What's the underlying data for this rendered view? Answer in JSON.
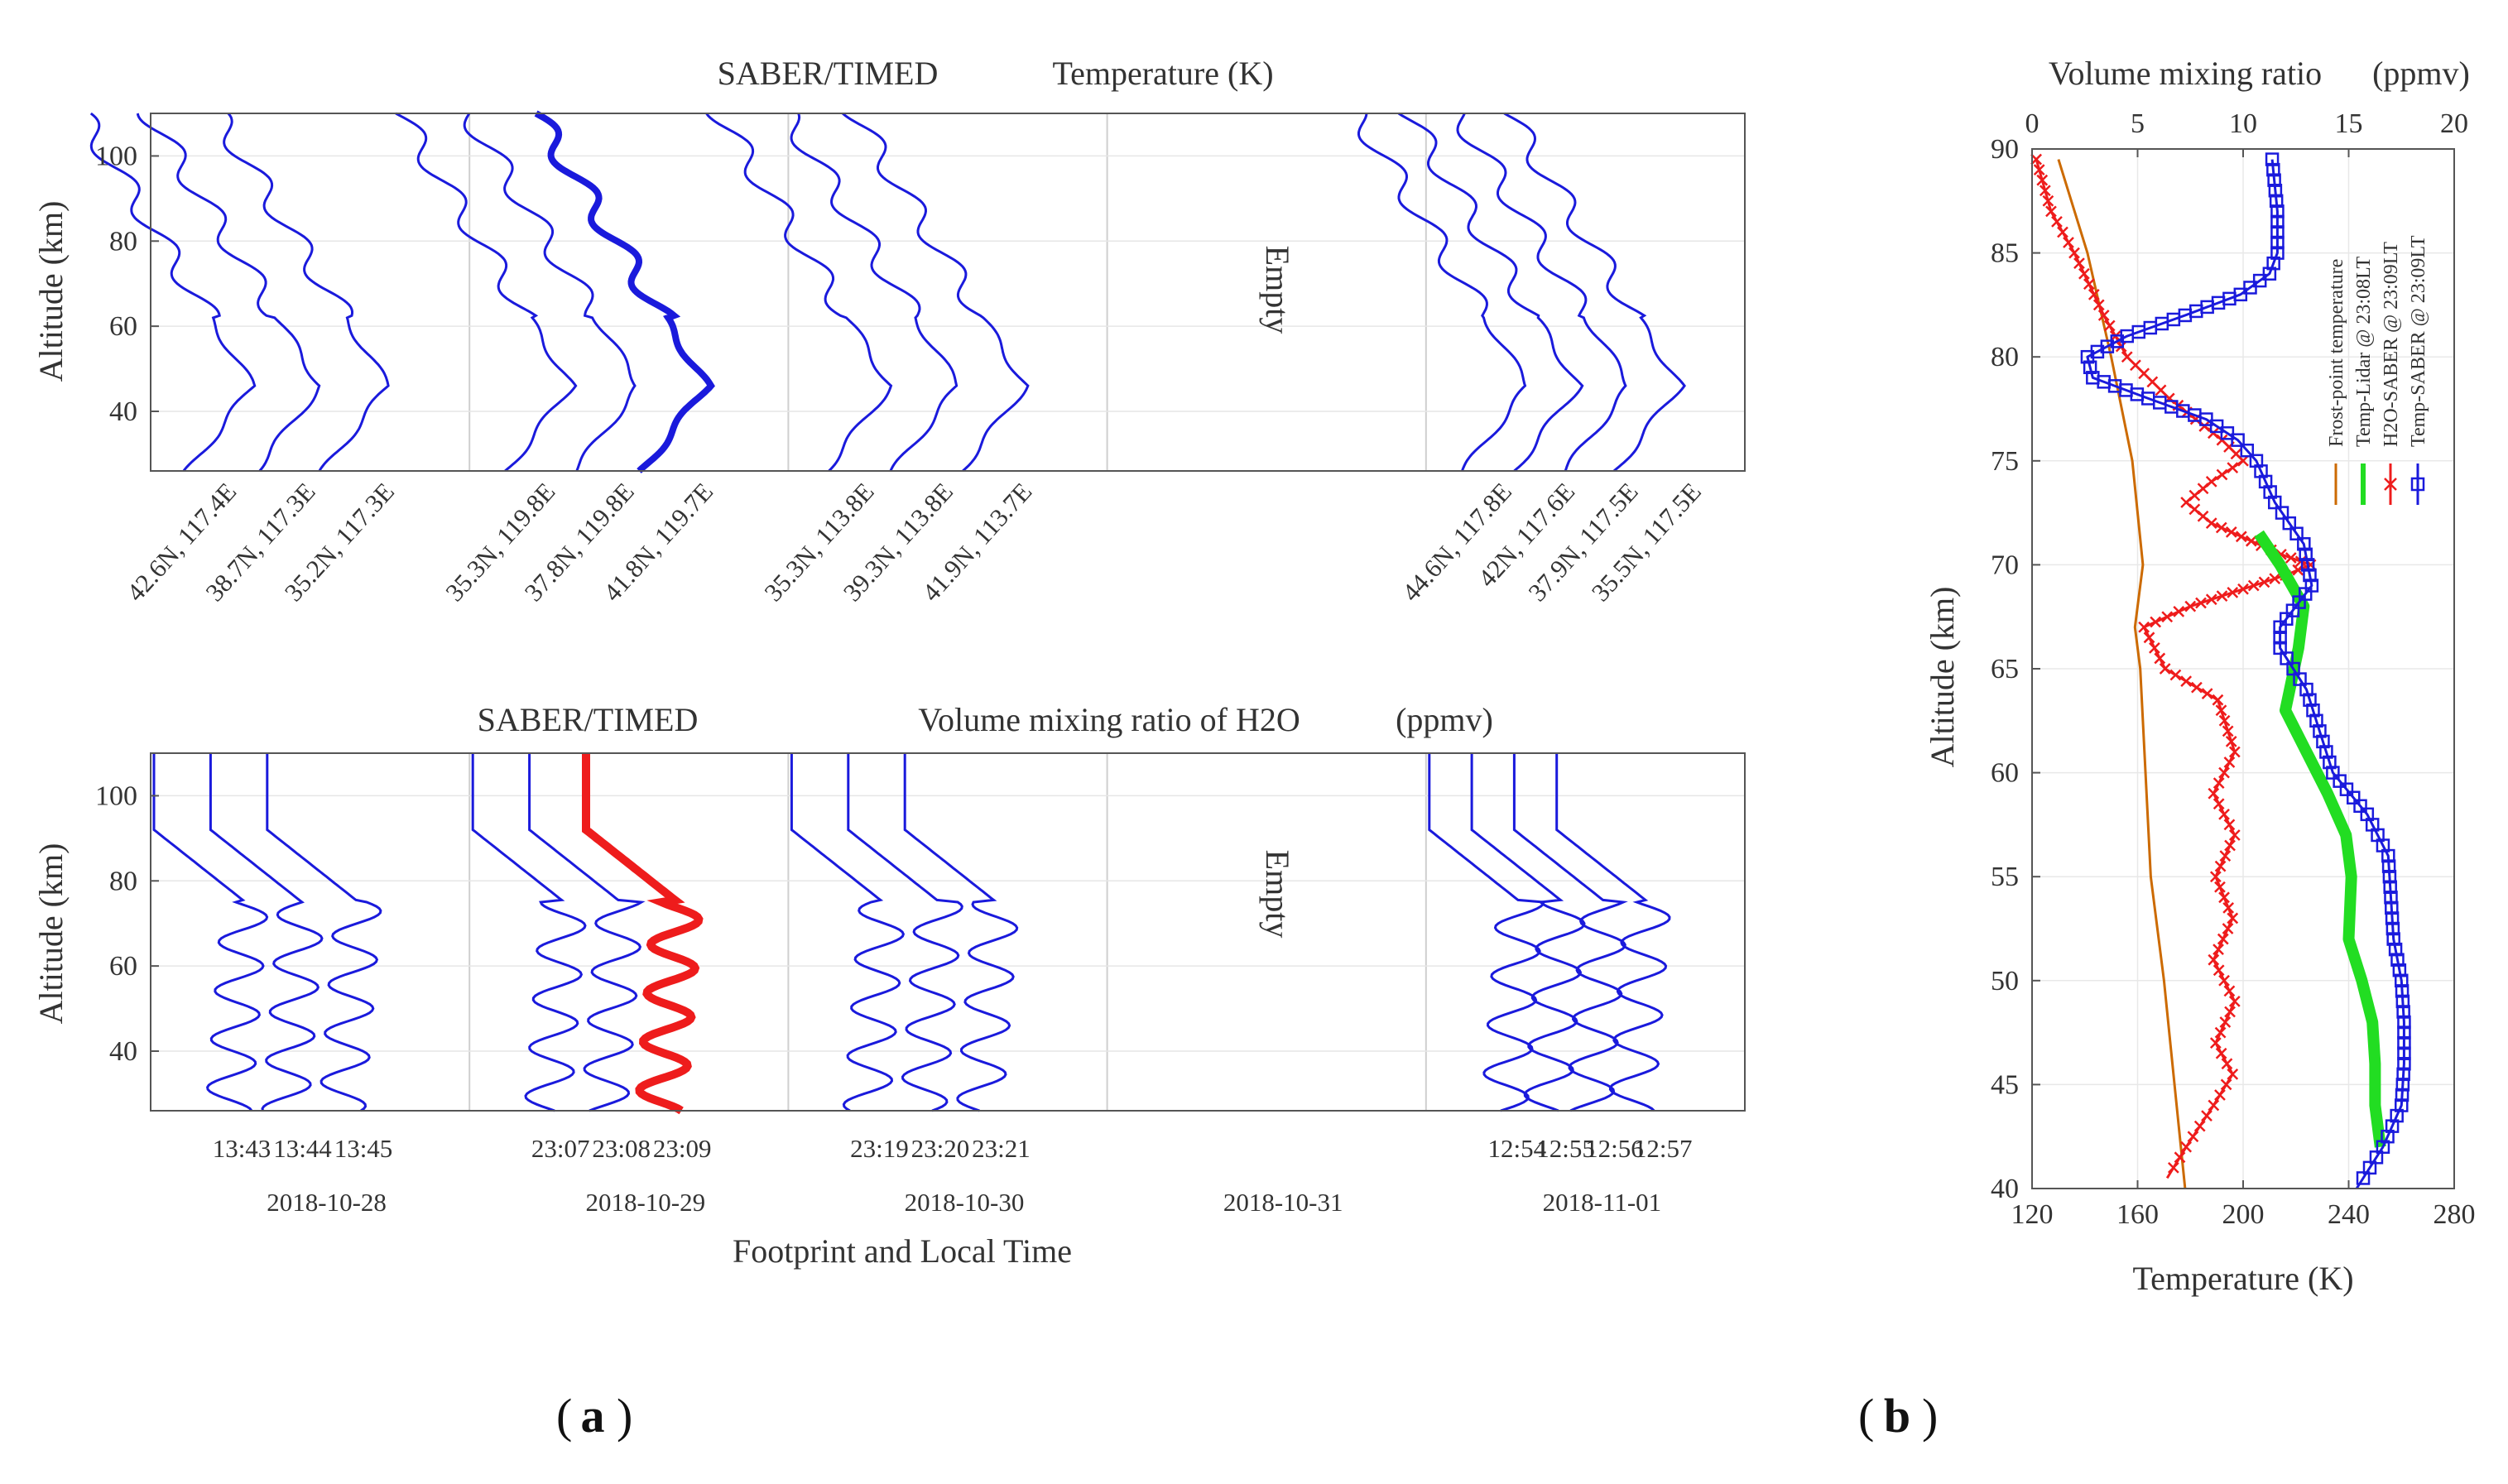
{
  "colors": {
    "blue": "#1a1adc",
    "red": "#ee1c1c",
    "green": "#22dd22",
    "orange": "#cc6a00",
    "grid": "#cfcfcf",
    "frame": "#555555"
  },
  "panel_labels": {
    "a": "(a)",
    "b": "(b)",
    "a_text": "a",
    "b_text": "b"
  },
  "chart_data": [
    {
      "id": "a-top",
      "type": "line",
      "title_left": "SABER/TIMED",
      "title_right": "Temperature (K)",
      "ylabel": "Altitude (km)",
      "ylim": [
        26,
        110
      ],
      "yticks": [
        "40",
        "60",
        "80",
        "100"
      ],
      "empty_label": "Empty",
      "empty_group": 3,
      "groups": [
        {
          "footprints": [
            "42.6N, 117.4E",
            "38.7N, 117.3E",
            "35.2N, 117.3E"
          ]
        },
        {
          "footprints": [
            "35.3N, 119.8E",
            "37.8N, 119.8E",
            "41.8N, 119.7E"
          ],
          "highlight": 2
        },
        {
          "footprints": [
            "35.3N, 113.8E",
            "39.3N, 113.8E",
            "41.9N, 113.7E"
          ]
        },
        {
          "footprints": []
        },
        {
          "footprints": [
            "44.6N, 117.8E",
            "42N, 117.6E",
            "37.9N, 117.5E",
            "35.5N, 117.5E"
          ]
        }
      ]
    },
    {
      "id": "a-bottom",
      "type": "line",
      "title_left": "SABER/TIMED",
      "title_right": "Volume mixing ratio of H2O",
      "title_unit": "(ppmv)",
      "ylabel": "Altitude (km)",
      "xlabel": "Footprint and Local Time",
      "ylim": [
        26,
        110
      ],
      "yticks": [
        "40",
        "60",
        "80",
        "100"
      ],
      "empty_label": "Empty",
      "empty_group": 3,
      "groups": [
        {
          "times": [
            "13:43",
            "13:44",
            "13:45"
          ],
          "date": "2018-10-28"
        },
        {
          "times": [
            "23:07",
            "23:08",
            "23:09"
          ],
          "date": "2018-10-29",
          "highlight": 2
        },
        {
          "times": [
            "23:19",
            "23:20",
            "23:21"
          ],
          "date": "2018-10-30"
        },
        {
          "times": [],
          "date": "2018-10-31"
        },
        {
          "times": [
            "12:54",
            "12:55",
            "12:56",
            "12:57"
          ],
          "date": "2018-11-01"
        }
      ]
    },
    {
      "id": "b",
      "type": "line",
      "top_axis_label": "Volume mixing ratio",
      "top_axis_unit": "(ppmv)",
      "top_xlim": [
        0,
        20
      ],
      "top_ticks": [
        "0",
        "5",
        "10",
        "15",
        "20"
      ],
      "xlabel": "Temperature (K)",
      "xlim": [
        120,
        280
      ],
      "xticks": [
        "120",
        "160",
        "200",
        "240",
        "280"
      ],
      "ylabel": "Altitude (km)",
      "ylim": [
        40,
        90
      ],
      "yticks": [
        "40",
        "45",
        "50",
        "55",
        "60",
        "65",
        "70",
        "75",
        "80",
        "85",
        "90"
      ],
      "legend": [
        "Frost-point temperature",
        "Temp-Lidar @ 23:08LT",
        "H2O-SABER @ 23:09LT",
        "Temp-SABER @ 23:09LT"
      ],
      "series": [
        {
          "name": "Frost-point temperature",
          "axis": "bottom",
          "points": [
            [
              130,
              89.5
            ],
            [
              141,
              85
            ],
            [
              150,
              80
            ],
            [
              158,
              75
            ],
            [
              162,
              70
            ],
            [
              159,
              67
            ],
            [
              161,
              65
            ],
            [
              165,
              55
            ],
            [
              170,
              50
            ],
            [
              174,
              45
            ],
            [
              178,
              40
            ]
          ]
        },
        {
          "name": "H2O-SABER @ 23:09LT",
          "axis": "top",
          "points": [
            [
              0.2,
              89.5
            ],
            [
              0.9,
              87
            ],
            [
              2.0,
              85
            ],
            [
              3.4,
              82
            ],
            [
              4.5,
              80
            ],
            [
              6.5,
              78
            ],
            [
              9.0,
              76
            ],
            [
              10.0,
              75
            ],
            [
              8.5,
              74
            ],
            [
              7.3,
              73
            ],
            [
              8.5,
              72
            ],
            [
              11.8,
              70.5
            ],
            [
              13.2,
              70
            ],
            [
              12.0,
              69.5
            ],
            [
              7.5,
              68
            ],
            [
              5.3,
              67
            ],
            [
              6.3,
              65
            ],
            [
              8.8,
              63.5
            ],
            [
              9.6,
              61
            ],
            [
              8.6,
              59
            ],
            [
              9.6,
              57
            ],
            [
              8.7,
              55
            ],
            [
              9.5,
              53
            ],
            [
              8.6,
              51
            ],
            [
              9.6,
              49
            ],
            [
              8.7,
              47
            ],
            [
              9.5,
              45.5
            ],
            [
              8.6,
              44
            ],
            [
              7.3,
              42
            ],
            [
              6.4,
              40.5
            ]
          ]
        },
        {
          "name": "Temp-Lidar @ 23:08LT",
          "axis": "bottom",
          "points": [
            [
              206,
              71.5
            ],
            [
              214,
              70
            ],
            [
              223,
              68
            ],
            [
              221,
              66
            ],
            [
              216,
              63
            ],
            [
              224,
              61
            ],
            [
              232,
              59
            ],
            [
              239,
              57
            ],
            [
              241,
              55
            ],
            [
              240,
              52
            ],
            [
              245,
              50
            ],
            [
              249,
              48
            ],
            [
              250,
              46
            ],
            [
              250,
              44
            ],
            [
              252,
              42
            ]
          ]
        },
        {
          "name": "Temp-SABER @ 23:09LT",
          "axis": "bottom",
          "points": [
            [
              211,
              89.5
            ],
            [
              213,
              87
            ],
            [
              213,
              85
            ],
            [
              210,
              84
            ],
            [
              199,
              83
            ],
            [
              178,
              82
            ],
            [
              156,
              81
            ],
            [
              141,
              80
            ],
            [
              143,
              79
            ],
            [
              164,
              78
            ],
            [
              186,
              77
            ],
            [
              198,
              76
            ],
            [
              205,
              75
            ],
            [
              212,
              73
            ],
            [
              223,
              71
            ],
            [
              226,
              69
            ],
            [
              214,
              67
            ],
            [
              214,
              66
            ],
            [
              224,
              64
            ],
            [
              229,
              62
            ],
            [
              234,
              60
            ],
            [
              247,
              58
            ],
            [
              255,
              56
            ],
            [
              256,
              54
            ],
            [
              257,
              52
            ],
            [
              260,
              50
            ],
            [
              261,
              48
            ],
            [
              261,
              46
            ],
            [
              260,
              44
            ],
            [
              253,
              42
            ],
            [
              243,
              40
            ]
          ]
        }
      ]
    }
  ]
}
